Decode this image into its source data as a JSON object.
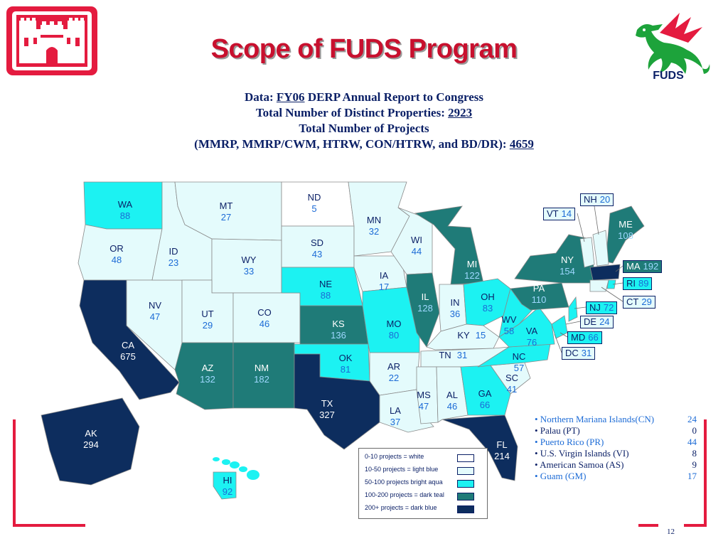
{
  "slide": {
    "title": "Scope of FUDS Program",
    "page_number": "12"
  },
  "header": {
    "line1_prefix": "Data:",
    "line1_link": "FY06",
    "line1_suffix": "DERP Annual Report to Congress",
    "line2_prefix": "Total Number of Distinct Properties:",
    "line2_value": "2923",
    "line3": "Total Number of Projects",
    "line4_prefix": "(MMRP, MMRP/CWM, HTRW, CON/HTRW, and BD/DR):",
    "line4_value": "4659"
  },
  "logos": {
    "right_label": "FUDS"
  },
  "colors": {
    "white": "#ffffff",
    "light_blue": "#e4fbfc",
    "bright_aqua": "#1cf2f2",
    "dark_teal": "#1f7b78",
    "dark_blue": "#0d2d5e",
    "red": "#e41b3f",
    "navy_text": "#0a1f66",
    "num_blue": "#1c6bd6"
  },
  "states": [
    {
      "abbr": "WA",
      "count": "88"
    },
    {
      "abbr": "OR",
      "count": "48"
    },
    {
      "abbr": "CA",
      "count": "675"
    },
    {
      "abbr": "NV",
      "count": "47"
    },
    {
      "abbr": "ID",
      "count": "23"
    },
    {
      "abbr": "MT",
      "count": "27"
    },
    {
      "abbr": "WY",
      "count": "33"
    },
    {
      "abbr": "UT",
      "count": "29"
    },
    {
      "abbr": "CO",
      "count": "46"
    },
    {
      "abbr": "AZ",
      "count": "132"
    },
    {
      "abbr": "NM",
      "count": "182"
    },
    {
      "abbr": "ND",
      "count": "5"
    },
    {
      "abbr": "SD",
      "count": "43"
    },
    {
      "abbr": "NE",
      "count": "88"
    },
    {
      "abbr": "KS",
      "count": "136"
    },
    {
      "abbr": "OK",
      "count": "81"
    },
    {
      "abbr": "TX",
      "count": "327"
    },
    {
      "abbr": "MN",
      "count": "32"
    },
    {
      "abbr": "IA",
      "count": "17"
    },
    {
      "abbr": "MO",
      "count": "80"
    },
    {
      "abbr": "AR",
      "count": "22"
    },
    {
      "abbr": "LA",
      "count": "37"
    },
    {
      "abbr": "WI",
      "count": "44"
    },
    {
      "abbr": "IL",
      "count": "128"
    },
    {
      "abbr": "MI",
      "count": "122"
    },
    {
      "abbr": "IN",
      "count": "36"
    },
    {
      "abbr": "OH",
      "count": "83"
    },
    {
      "abbr": "KY",
      "count": "15"
    },
    {
      "abbr": "TN",
      "count": "31"
    },
    {
      "abbr": "MS",
      "count": "47"
    },
    {
      "abbr": "AL",
      "count": "46"
    },
    {
      "abbr": "GA",
      "count": "66"
    },
    {
      "abbr": "FL",
      "count": "214"
    },
    {
      "abbr": "SC",
      "count": "41"
    },
    {
      "abbr": "NC",
      "count": "57"
    },
    {
      "abbr": "VA",
      "count": "76"
    },
    {
      "abbr": "WV",
      "count": "58"
    },
    {
      "abbr": "PA",
      "count": "110"
    },
    {
      "abbr": "NY",
      "count": "154"
    },
    {
      "abbr": "ME",
      "count": "108"
    },
    {
      "abbr": "AK",
      "count": "294"
    },
    {
      "abbr": "HI",
      "count": "92"
    }
  ],
  "east_boxes": [
    {
      "abbr": "NH",
      "count": "20"
    },
    {
      "abbr": "VT",
      "count": "14"
    },
    {
      "abbr": "MA",
      "count": "192"
    },
    {
      "abbr": "RI",
      "count": "89"
    },
    {
      "abbr": "CT",
      "count": "29"
    },
    {
      "abbr": "NJ",
      "count": "72"
    },
    {
      "abbr": "DE",
      "count": "24"
    },
    {
      "abbr": "MD",
      "count": "66"
    },
    {
      "abbr": "DC",
      "count": "31"
    }
  ],
  "legend": [
    {
      "label": "0-10 projects = white",
      "color": "#ffffff"
    },
    {
      "label": "10-50 projects = light blue",
      "color": "#e4fbfc"
    },
    {
      "label": "50-100 projects bright aqua",
      "color": "#1cf2f2"
    },
    {
      "label": "100-200 projects = dark teal",
      "color": "#1f7b78"
    },
    {
      "label": "200+ projects = dark blue",
      "color": "#0d2d5e"
    }
  ],
  "territories": [
    {
      "label": "• Northern Mariana Islands(CN)",
      "value": "24",
      "color": "#1c6bd6"
    },
    {
      "label": "• Palau (PT)",
      "value": "0",
      "color": "#0a1f66"
    },
    {
      "label": "• Puerto Rico (PR)",
      "value": "44",
      "color": "#1c6bd6"
    },
    {
      "label": "• U.S. Virgin Islands (VI)",
      "value": "8",
      "color": "#0a1f66"
    },
    {
      "label": "• American Samoa (AS)",
      "value": "9",
      "color": "#0a1f66"
    },
    {
      "label": "• Guam (GM)",
      "value": "17",
      "color": "#1c6bd6"
    }
  ]
}
